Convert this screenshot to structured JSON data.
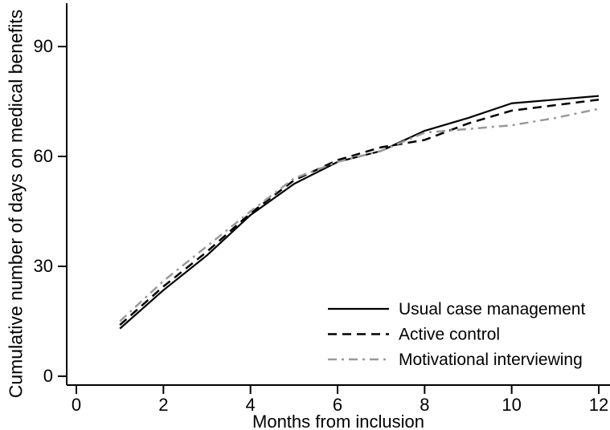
{
  "figure": {
    "background": "#ffffff",
    "axis_color": "#000000"
  },
  "chart_data": {
    "type": "line",
    "title": "",
    "xlabel": "Months from inclusion",
    "ylabel": "Cumulative number of days on medical benefits",
    "xlim": [
      0,
      12.3
    ],
    "ylim": [
      0,
      101
    ],
    "xticks": [
      0,
      2,
      4,
      6,
      8,
      10,
      12
    ],
    "yticks": [
      0,
      30,
      60,
      90
    ],
    "grid": false,
    "legend_position": "lower right",
    "x": [
      1,
      2,
      3,
      4,
      5,
      6,
      7,
      8,
      9,
      10,
      11,
      12
    ],
    "series": [
      {
        "name": "Usual case management",
        "color": "#000000",
        "line_style": "solid",
        "values": [
          13,
          23.5,
          33,
          44,
          52.5,
          58.5,
          61.5,
          67,
          70.5,
          74.5,
          75.5,
          76.5
        ]
      },
      {
        "name": "Active control",
        "color": "#000000",
        "line_style": "dashed",
        "values": [
          14,
          24.5,
          34,
          44.5,
          53.5,
          59,
          62.5,
          64.5,
          69,
          72.5,
          74,
          75.5
        ]
      },
      {
        "name": "Motivational interviewing",
        "color": "#999999",
        "line_style": "dashdot",
        "values": [
          15,
          26,
          35.5,
          45,
          54,
          58.5,
          61.5,
          66.5,
          67.5,
          68.5,
          70.5,
          73
        ]
      }
    ]
  }
}
